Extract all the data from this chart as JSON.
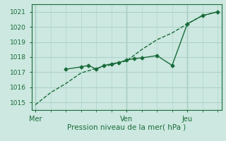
{
  "background_color": "#cce8e0",
  "grid_color": "#aacfc8",
  "line_color": "#1a6b3a",
  "ylabel_values": [
    1015,
    1016,
    1017,
    1018,
    1019,
    1020,
    1021
  ],
  "ylim": [
    1014.5,
    1021.5
  ],
  "xlabel": "Pression niveau de la mer( hPa )",
  "xtick_labels": [
    "Mer",
    "Ven",
    "Jeu"
  ],
  "xtick_positions": [
    0,
    12,
    20
  ],
  "xlim": [
    -0.5,
    24.5
  ],
  "line1_x": [
    0,
    2,
    4,
    6,
    8,
    10,
    12,
    14,
    16,
    18,
    20,
    22,
    24
  ],
  "line1_y": [
    1014.85,
    1015.65,
    1016.25,
    1016.95,
    1017.25,
    1017.5,
    1017.75,
    1018.5,
    1019.15,
    1019.6,
    1020.2,
    1020.75,
    1021.0
  ],
  "line2_x": [
    4,
    6,
    7,
    8,
    9,
    10,
    11,
    12,
    13,
    14,
    16,
    18,
    20,
    22,
    24
  ],
  "line2_y": [
    1017.2,
    1017.35,
    1017.45,
    1017.2,
    1017.45,
    1017.55,
    1017.65,
    1017.8,
    1017.9,
    1017.95,
    1018.1,
    1017.45,
    1020.2,
    1020.75,
    1021.0
  ],
  "vline_positions": [
    0,
    12,
    20
  ],
  "marker_size": 2.5,
  "linewidth": 1.0
}
